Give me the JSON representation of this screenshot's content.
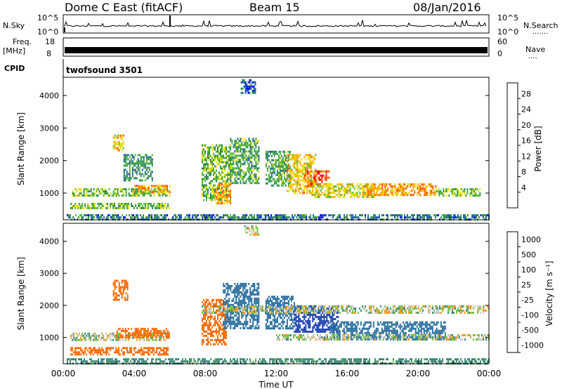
{
  "header": {
    "station": "Dome C East (fitACF)",
    "beam": "Beam 15",
    "date": "08/Jan/2016"
  },
  "nsky_panel": {
    "left_label": "N.Sky",
    "right_label": "N.Search",
    "right_dots": ".......",
    "left_ticks": [
      "10^5",
      "10^0"
    ],
    "right_ticks": [
      "10^5",
      "10^0"
    ]
  },
  "freq_panel": {
    "left_label_1": "Freq.",
    "left_label_2": "[MHz]",
    "right_label": "Nave",
    "right_dots": "....",
    "left_ticks": [
      "18",
      "8"
    ],
    "right_ticks": [
      "60",
      "0"
    ]
  },
  "cpid_panel": {
    "label": "CPID",
    "program": "twofsound 3501"
  },
  "power_panel": {
    "ylabel": "Slant Range [km]",
    "yticks": [
      "4000",
      "3000",
      "2000",
      "1000"
    ],
    "colorbar_label": "Power [dB]",
    "colorbar_ticks": [
      "28",
      "24",
      "20",
      "16",
      "12",
      "8",
      "4"
    ],
    "colors": [
      "#0000ff",
      "#1f5fb0",
      "#2e8f4e",
      "#57b83a",
      "#e8e000",
      "#ffa500",
      "#ff5a00",
      "#ff0000"
    ]
  },
  "velocity_panel": {
    "ylabel": "Slant Range [km]",
    "yticks": [
      "4000",
      "3000",
      "2000",
      "1000"
    ],
    "colorbar_label": "Velocity [m s⁻¹]",
    "colorbar_ticks": [
      "1000",
      "500",
      "100",
      "25",
      "-25",
      "-100",
      "-500",
      "-1000"
    ],
    "colors": [
      "#1a3fb0",
      "#2a6fa0",
      "#3a8a78",
      "#7ac043",
      "#c8c8c8",
      "#ff9a20",
      "#ff6a00",
      "#ff0000"
    ]
  },
  "xaxis": {
    "label": "Time UT",
    "ticks": [
      "00:00",
      "04:00",
      "08:00",
      "12:00",
      "16:00",
      "20:00",
      "00:00"
    ]
  },
  "chart_data": [
    {
      "type": "heatmap",
      "title": "Power [dB]",
      "ylabel": "Slant Range [km]",
      "xlabel": "Time UT",
      "x_range": [
        "00:00",
        "24:00"
      ],
      "ylim": [
        180,
        4560
      ],
      "colorbar_range": [
        0,
        30
      ],
      "patches": [
        {
          "t0": 0.5,
          "t1": 6.0,
          "r0": 950,
          "r1": 1150,
          "value": 14
        },
        {
          "t0": 4.0,
          "t1": 6.0,
          "r0": 1000,
          "r1": 1250,
          "value": 22
        },
        {
          "t0": 2.8,
          "t1": 3.4,
          "r0": 2300,
          "r1": 2800,
          "value": 20
        },
        {
          "t0": 3.4,
          "t1": 5.0,
          "r0": 1400,
          "r1": 2200,
          "value": 10
        },
        {
          "t0": 0.4,
          "t1": 6.0,
          "r0": 550,
          "r1": 700,
          "value": 14
        },
        {
          "t0": 0.2,
          "t1": 24.0,
          "r0": 200,
          "r1": 350,
          "value": 8
        },
        {
          "t0": 7.8,
          "t1": 9.4,
          "r0": 800,
          "r1": 2500,
          "value": 14
        },
        {
          "t0": 8.6,
          "t1": 9.4,
          "r0": 700,
          "r1": 1300,
          "value": 22
        },
        {
          "t0": 9.4,
          "t1": 11.0,
          "r0": 1300,
          "r1": 2700,
          "value": 12
        },
        {
          "t0": 11.4,
          "t1": 12.8,
          "r0": 1200,
          "r1": 2300,
          "value": 12
        },
        {
          "t0": 12.6,
          "t1": 14.2,
          "r0": 1000,
          "r1": 2200,
          "value": 20
        },
        {
          "t0": 13.6,
          "t1": 15.0,
          "r0": 1200,
          "r1": 1700,
          "value": 26
        },
        {
          "t0": 14.0,
          "t1": 17.5,
          "r0": 900,
          "r1": 1300,
          "value": 18
        },
        {
          "t0": 17.0,
          "t1": 21.0,
          "r0": 950,
          "r1": 1300,
          "value": 22
        },
        {
          "t0": 21.0,
          "t1": 23.5,
          "r0": 950,
          "r1": 1150,
          "value": 14
        },
        {
          "t0": 10.0,
          "t1": 10.8,
          "r0": 4100,
          "r1": 4500,
          "value": 6
        }
      ]
    },
    {
      "type": "heatmap",
      "title": "Velocity [m s⁻¹]",
      "ylabel": "Slant Range [km]",
      "xlabel": "Time UT",
      "x_range": [
        "00:00",
        "24:00"
      ],
      "ylim": [
        180,
        4560
      ],
      "colorbar_range": [
        -1000,
        1000
      ],
      "patches": [
        {
          "t0": 0.4,
          "t1": 6.0,
          "r0": 950,
          "r1": 1150,
          "value": 0
        },
        {
          "t0": 3.0,
          "t1": 6.0,
          "r0": 1000,
          "r1": 1300,
          "value": -300
        },
        {
          "t0": 0.4,
          "t1": 6.0,
          "r0": 500,
          "r1": 700,
          "value": -200
        },
        {
          "t0": 2.8,
          "t1": 3.6,
          "r0": 2200,
          "r1": 2800,
          "value": -150
        },
        {
          "t0": 0.2,
          "t1": 24.0,
          "r0": 200,
          "r1": 350,
          "value": 60
        },
        {
          "t0": 7.8,
          "t1": 9.2,
          "r0": 800,
          "r1": 2200,
          "value": -400
        },
        {
          "t0": 9.0,
          "t1": 11.0,
          "r0": 1300,
          "r1": 2700,
          "value": 150
        },
        {
          "t0": 11.4,
          "t1": 13.0,
          "r0": 1300,
          "r1": 2300,
          "value": 300
        },
        {
          "t0": 13.0,
          "t1": 15.5,
          "r0": 1200,
          "r1": 2000,
          "value": 700
        },
        {
          "t0": 15.0,
          "t1": 21.5,
          "r0": 950,
          "r1": 1500,
          "value": 250
        },
        {
          "t0": 12.0,
          "t1": 24.0,
          "r0": 950,
          "r1": 1100,
          "value": 0
        },
        {
          "t0": 7.8,
          "t1": 24.0,
          "r0": 1800,
          "r1": 2000,
          "value": 0
        },
        {
          "t0": 10.2,
          "t1": 11.0,
          "r0": 4200,
          "r1": 4500,
          "value": 0
        }
      ]
    }
  ]
}
